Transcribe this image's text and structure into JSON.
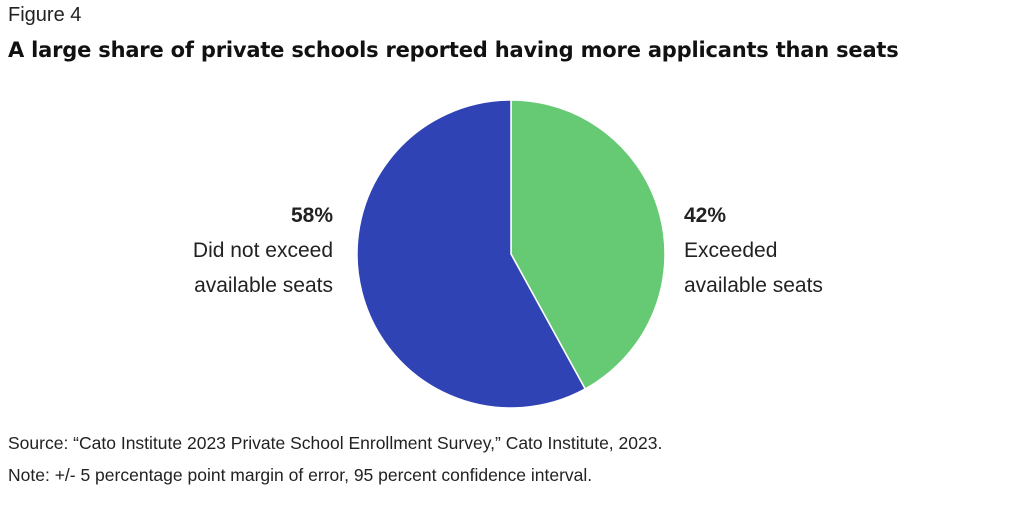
{
  "figure_label": "Figure 4",
  "chart_data": {
    "type": "pie",
    "title": "A large share of private schools reported having more applicants than seats",
    "slices": [
      {
        "pct_label": "42%",
        "value": 42,
        "label_lines": [
          "Exceeded",
          "available seats"
        ],
        "color": "#66c973"
      },
      {
        "pct_label": "58%",
        "value": 58,
        "label_lines": [
          "Did not exceed",
          "available seats"
        ],
        "color": "#2f43b4"
      }
    ]
  },
  "source": "Source: “Cato Institute 2023 Private School Enrollment Survey,” Cato Institute, 2023.",
  "note": "Note: +/- 5 percentage point margin of error, 95 percent confidence interval."
}
